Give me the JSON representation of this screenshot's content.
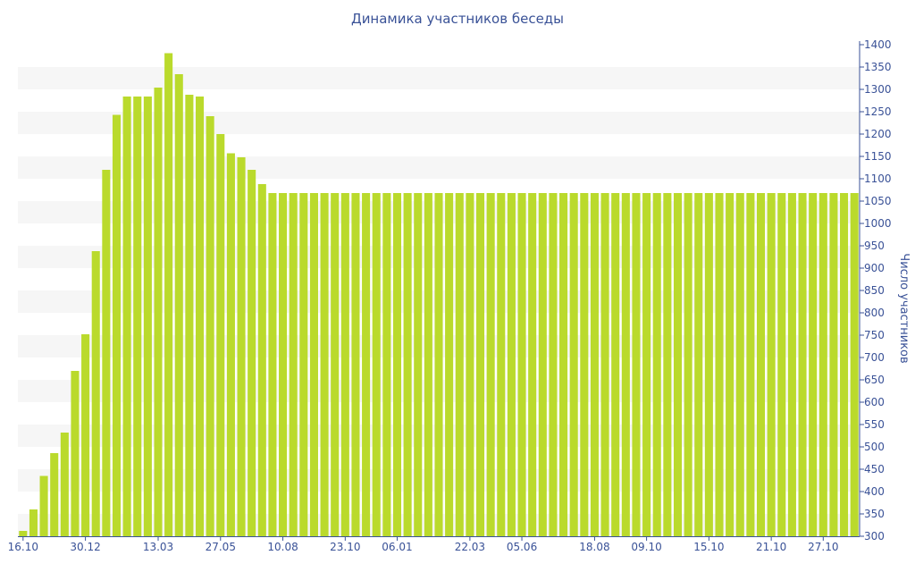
{
  "chart_data": {
    "type": "bar",
    "title": "Динамика участников беседы",
    "ylabel": "Число участников",
    "xlabel": "",
    "ylim": [
      300,
      1400
    ],
    "y_ticks": [
      300,
      350,
      400,
      450,
      500,
      550,
      600,
      650,
      700,
      750,
      800,
      850,
      900,
      950,
      1000,
      1050,
      1100,
      1150,
      1200,
      1250,
      1300,
      1350,
      1400
    ],
    "y_axis_position": "right",
    "grid": "alternating horizontal bands",
    "x_tick_labels": [
      "16.10",
      "30.12",
      "13.03",
      "27.05",
      "10.08",
      "23.10",
      "06.01",
      "22.03",
      "05.06",
      "18.08",
      "09.10",
      "15.10",
      "21.10",
      "27.10"
    ],
    "x_tick_indices": [
      0,
      6,
      13,
      19,
      25,
      31,
      36,
      43,
      48,
      55,
      60,
      66,
      72,
      77
    ],
    "series": [
      {
        "values": [
          312,
          360,
          435,
          486,
          532,
          670,
          752,
          938,
          1120,
          1243,
          1284,
          1284,
          1284,
          1304,
          1381,
          1334,
          1288,
          1284,
          1240,
          1200,
          1157,
          1148,
          1120,
          1088,
          1068,
          1068,
          1068,
          1068,
          1068,
          1068,
          1068,
          1068,
          1068,
          1068,
          1068,
          1068,
          1068,
          1068,
          1068,
          1068,
          1068,
          1068,
          1068,
          1068,
          1068,
          1068,
          1068,
          1068,
          1068,
          1068,
          1068,
          1068,
          1068,
          1068,
          1068,
          1068,
          1068,
          1068,
          1068,
          1068,
          1068,
          1068,
          1068,
          1068,
          1068,
          1068,
          1068,
          1068,
          1068,
          1068,
          1068,
          1068,
          1068,
          1068,
          1068,
          1068,
          1068,
          1068,
          1068,
          1068,
          1068
        ],
        "color": "#bada2c"
      }
    ],
    "colors": {
      "bar": "#bada2c",
      "band": "#f6f6f6",
      "text": "#3a5297",
      "axis": "#3a5297"
    }
  }
}
